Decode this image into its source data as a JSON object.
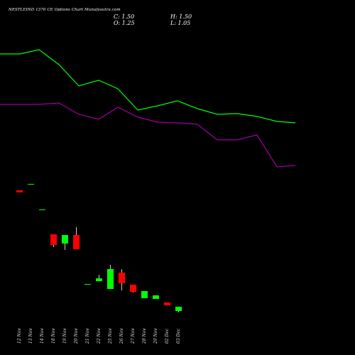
{
  "header": {
    "title": "NESTLEIND 1370 CE Options Chart Munafasutra.com",
    "open": "O: 1.25",
    "high": "H: 1.50",
    "low": "L: 1.05",
    "close": "C: 1.50"
  },
  "colors": {
    "background": "#000000",
    "up": "#00ff00",
    "down": "#ff0000",
    "upper_line": "#00ff00",
    "lower_line": "#a000a0"
  },
  "chart_data": {
    "type": "candlestick",
    "x": [
      "12 Nov",
      "13 Nov",
      "14 Nov",
      "18 Nov",
      "19 Nov",
      "20 Nov",
      "21 Nov",
      "22 Nov",
      "25 Nov",
      "26 Nov",
      "27 Nov",
      "28 Nov",
      "29 Nov",
      "02 Dec",
      "03 Dec",
      "04 Dec",
      "05 Dec"
    ],
    "candles": [
      {
        "date": "12 Nov",
        "open": 0.18,
        "close": 0.16,
        "high": 0.18,
        "low": 0.16,
        "dir": "down"
      },
      {
        "date": "13 Nov",
        "open": 0.01,
        "close": 0.01,
        "high": 0.01,
        "low": 0.01,
        "dir": "up"
      },
      {
        "date": "14 Nov",
        "open": 0.03,
        "close": 0.03,
        "high": 0.03,
        "low": 0.03,
        "dir": "up"
      },
      {
        "date": "18 Nov",
        "open": 0.05,
        "close": 0.04,
        "high": 0.05,
        "low": 0.04,
        "dir": "down"
      },
      {
        "date": "19 Nov",
        "open": 0.04,
        "close": 0.05,
        "high": 0.05,
        "low": 0.03,
        "dir": "up"
      },
      {
        "date": "20 Nov",
        "open": 0.05,
        "close": 0.03,
        "high": 0.06,
        "low": 0.03,
        "dir": "down"
      },
      {
        "date": "21 Nov",
        "open": 0.01,
        "close": 0.01,
        "high": 0.01,
        "low": 0.01,
        "dir": "up"
      },
      {
        "date": "22 Nov",
        "open": 0.02,
        "close": 0.03,
        "high": 0.04,
        "low": 0.02,
        "dir": "up"
      },
      {
        "date": "25 Nov",
        "open": 0.03,
        "close": 0.14,
        "high": 0.16,
        "low": 0.03,
        "dir": "up"
      },
      {
        "date": "26 Nov",
        "open": 0.15,
        "close": 0.08,
        "high": 0.17,
        "low": 0.07,
        "dir": "down"
      },
      {
        "date": "27 Nov",
        "open": 0.12,
        "close": 0.07,
        "high": 0.12,
        "low": 0.06,
        "dir": "down"
      },
      {
        "date": "28 Nov",
        "open": 0.06,
        "close": 0.09,
        "high": 0.09,
        "low": 0.06,
        "dir": "up"
      },
      {
        "date": "29 Nov",
        "open": 0.08,
        "close": 0.1,
        "high": 0.1,
        "low": 0.08,
        "dir": "up"
      },
      {
        "date": "02 Dec",
        "open": 0.22,
        "close": 0.21,
        "high": 0.22,
        "low": 0.21,
        "dir": "down"
      },
      {
        "date": "03 Dec",
        "open": 0.65,
        "close": 0.85,
        "high": 0.9,
        "low": 0.65,
        "dir": "up"
      },
      {
        "date": "04 Dec",
        "open": 1.0,
        "close": 0.8,
        "high": 1.05,
        "low": 0.75,
        "dir": "down"
      },
      {
        "date": "05 Dec",
        "open": 1.25,
        "close": 1.5,
        "high": 1.5,
        "low": 1.05,
        "dir": "up"
      }
    ],
    "lines": [
      {
        "color": "#00ff00",
        "values": [
          1.5,
          1.5,
          1.45,
          1.3,
          1.1,
          1.18,
          1.05,
          0.9,
          0.95,
          0.92,
          0.88,
          0.82,
          0.78,
          0.8,
          0.78,
          0.72,
          0.68
        ]
      },
      {
        "color": "#a000a0",
        "values": [
          0.95,
          0.95,
          0.95,
          0.93,
          0.88,
          0.85,
          0.8,
          0.83,
          0.85,
          0.82,
          0.8,
          0.78,
          0.7,
          0.7,
          0.72,
          0.5,
          0.52
        ]
      }
    ],
    "grid": false
  }
}
